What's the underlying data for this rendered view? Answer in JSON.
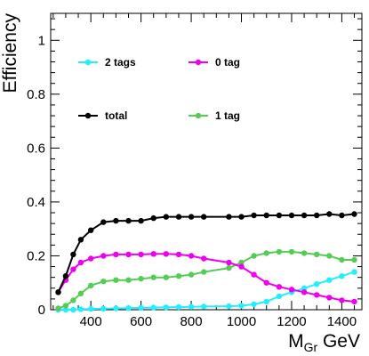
{
  "chart_data": {
    "type": "line",
    "title": "",
    "xlabel": "M_Gr GeV",
    "xlabel_main": "M",
    "xlabel_sub": "Gr",
    "xlabel_unit": "GeV",
    "ylabel": "Efficiency",
    "xlim": [
      240,
      1480
    ],
    "ylim": [
      0,
      1.1
    ],
    "xticks": [
      400,
      600,
      800,
      1000,
      1200,
      1400
    ],
    "xtick_labels": [
      "400",
      "600",
      "800",
      "1000",
      "1200",
      "1400"
    ],
    "yticks": [
      0,
      0.2,
      0.4,
      0.6,
      0.8,
      1
    ],
    "ytick_labels": [
      "0",
      "0.2",
      "0.4",
      "0.6",
      "0.8",
      "1"
    ],
    "grid": false,
    "legend_layout": "upper-left, two columns",
    "x": [
      270,
      300,
      330,
      360,
      400,
      450,
      500,
      550,
      600,
      650,
      700,
      750,
      800,
      850,
      950,
      1000,
      1050,
      1100,
      1150,
      1200,
      1250,
      1300,
      1350,
      1400,
      1450
    ],
    "series": [
      {
        "name": "2 tags",
        "color": "#22eeff",
        "values": [
          0.0,
          0.0,
          0.0,
          0.002,
          0.003,
          0.004,
          0.005,
          0.006,
          0.007,
          0.008,
          0.009,
          0.01,
          0.011,
          0.012,
          0.013,
          0.015,
          0.02,
          0.03,
          0.05,
          0.065,
          0.08,
          0.095,
          0.11,
          0.125,
          0.14
        ]
      },
      {
        "name": "0 tag",
        "color": "#ee00ee",
        "values": [
          0.065,
          0.11,
          0.15,
          0.175,
          0.19,
          0.2,
          0.205,
          0.205,
          0.205,
          0.207,
          0.207,
          0.205,
          0.2,
          0.19,
          0.175,
          0.16,
          0.13,
          0.1,
          0.085,
          0.075,
          0.065,
          0.055,
          0.045,
          0.035,
          0.03
        ]
      },
      {
        "name": "total",
        "color": "#000000",
        "values": [
          0.065,
          0.125,
          0.205,
          0.26,
          0.295,
          0.325,
          0.33,
          0.33,
          0.33,
          0.34,
          0.345,
          0.345,
          0.345,
          0.345,
          0.345,
          0.345,
          0.35,
          0.35,
          0.35,
          0.35,
          0.35,
          0.35,
          0.355,
          0.35,
          0.355
        ]
      },
      {
        "name": "1 tag",
        "color": "#55cc55",
        "values": [
          0.005,
          0.015,
          0.035,
          0.06,
          0.09,
          0.105,
          0.11,
          0.11,
          0.115,
          0.12,
          0.12,
          0.125,
          0.13,
          0.14,
          0.155,
          0.175,
          0.2,
          0.21,
          0.215,
          0.215,
          0.21,
          0.205,
          0.2,
          0.185,
          0.185
        ]
      }
    ]
  }
}
